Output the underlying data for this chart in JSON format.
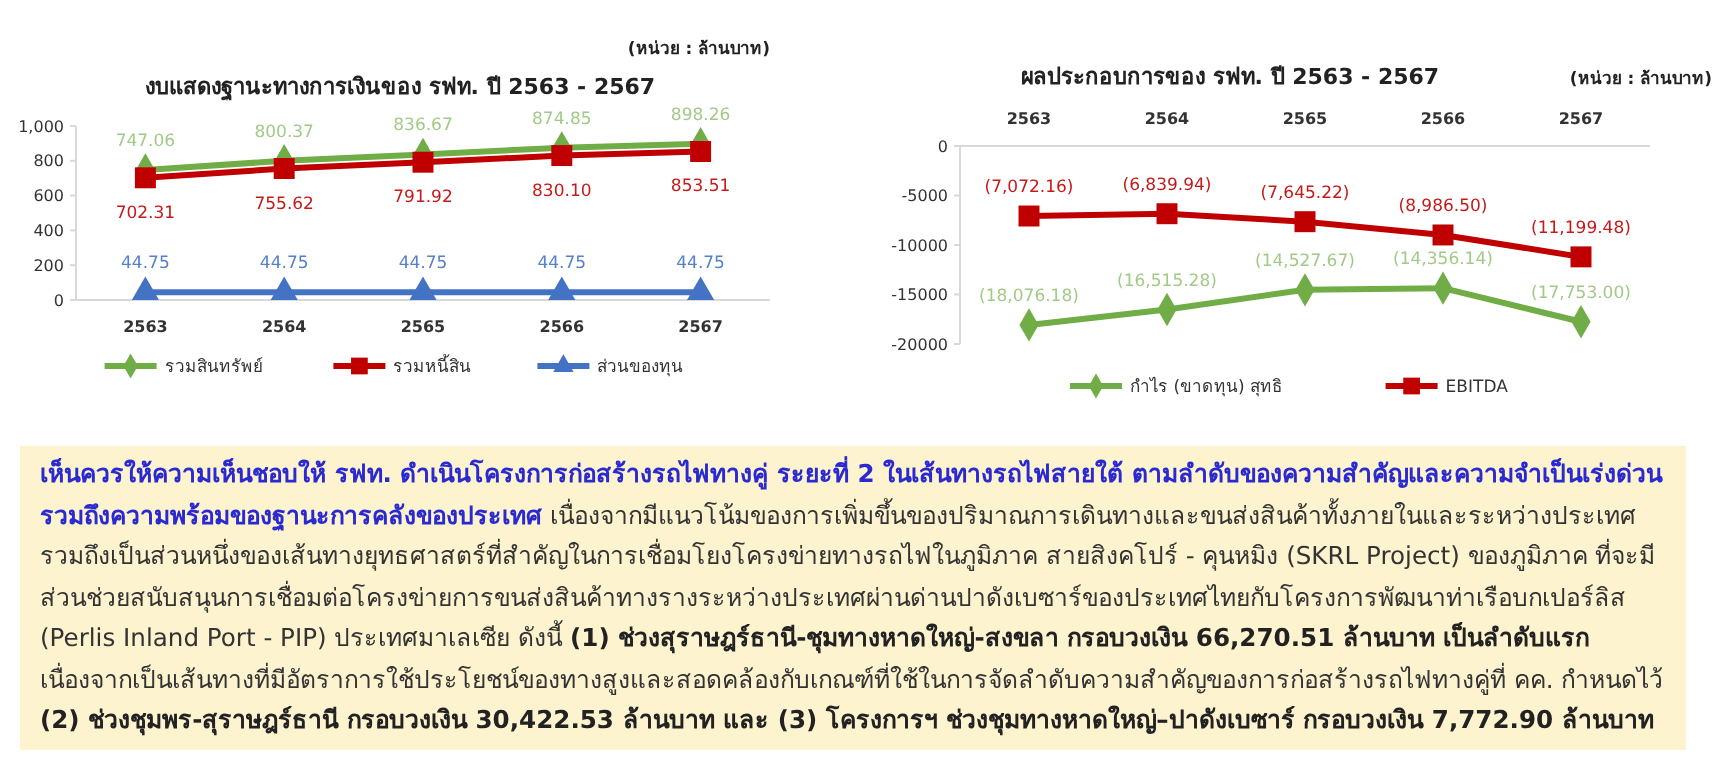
{
  "chart_data": [
    {
      "type": "line",
      "title": "งบแสดงฐานะทางการเงินของ รฟท. ปี 2563 - 2567",
      "annotations": [
        "(หน่วย : ล้านบาท)"
      ],
      "categories": [
        "2563",
        "2564",
        "2565",
        "2566",
        "2567"
      ],
      "ylim": [
        0,
        1000
      ],
      "yticks": [
        0,
        200,
        400,
        600,
        800,
        {
          "value": 1000,
          "label": "1,000"
        }
      ],
      "legend": "bottom",
      "series": [
        {
          "name": "รวมสินทรัพย์",
          "color": "#70ad47",
          "marker": "diamond",
          "values": [
            747.06,
            800.37,
            836.67,
            874.85,
            898.26
          ],
          "value_labels": [
            "747.06",
            "800.37",
            "836.67",
            "874.85",
            "898.26"
          ]
        },
        {
          "name": "รวมหนี้สิน",
          "color": "#c00000",
          "marker": "square",
          "values": [
            702.31,
            755.62,
            791.92,
            830.1,
            853.51
          ],
          "value_labels": [
            "702.31",
            "755.62",
            "791.92",
            "830.10",
            "853.51"
          ]
        },
        {
          "name": "ส่วนของทุน",
          "color": "#4472c4",
          "marker": "triangle",
          "values": [
            44.75,
            44.75,
            44.75,
            44.75,
            44.75
          ],
          "value_labels": [
            "44.75",
            "44.75",
            "44.75",
            "44.75",
            "44.75"
          ]
        }
      ]
    },
    {
      "type": "line",
      "title": "ผลประกอบการของ รฟท. ปี 2563 - 2567",
      "annotations": [
        "(หน่วย : ล้านบาท)"
      ],
      "categories": [
        "2563",
        "2564",
        "2565",
        "2566",
        "2567"
      ],
      "ylim": [
        -20000,
        0
      ],
      "yticks": [
        -20000,
        -15000,
        -10000,
        -5000,
        0
      ],
      "legend": "bottom",
      "series": [
        {
          "name": "กำไร (ขาดทุน) สุทธิ",
          "color": "#70ad47",
          "marker": "diamond",
          "values": [
            -18076.18,
            -16515.28,
            -14527.67,
            -14356.14,
            -17753.0
          ],
          "value_labels": [
            "(18,076.18)",
            "(16,515.28)",
            "(14,527.67)",
            "(14,356.14)",
            "(17,753.00)"
          ]
        },
        {
          "name": "EBITDA",
          "color": "#c00000",
          "marker": "square",
          "values": [
            -7072.16,
            -6839.94,
            -7645.22,
            -8986.5,
            -11199.48
          ],
          "value_labels": [
            "(7,072.16)",
            "(6,839.94)",
            "(7,645.22)",
            "(8,986.50)",
            "(11,199.48)"
          ]
        }
      ]
    },
    {
      "type": "other",
      "annotations": [
        "เห็นควรให้ความเห็นชอบให้ รฟท. ดำเนินโครงการก่อสร้างรถไฟทางคู่ ระยะที่ 2 ในเส้นทางรถไฟสายใต้ ตามลำดับของความสำคัญและความจำเป็นเร่งด่วน รวมถึงความพร้อมของฐานะการคลังของประเทศ",
        " เนื่องจากมีแนวโน้มของการเพิ่มขึ้นของปริมาณการเดินทางและขนส่งสินค้าทั้งภายในและระหว่างประเทศ รวมถึงเป็นส่วนหนึ่งของเส้นทางยุทธศาสตร์ที่สำคัญในการเชื่อมโยงโครงข่ายทางรถไฟในภูมิภาค สายสิงคโปร์ - คุนหมิง (SKRL Project) ของภูมิภาค ที่จะมีส่วนช่วยสนับสนุนการเชื่อมต่อโครงข่ายการขนส่งสินค้าทางรางระหว่างประเทศผ่านด่านปาดังเบซาร์ของประเทศไทยกับโครงการพัฒนาท่าเรือบกเปอร์ลิส (Perlis Inland Port - PIP) ประเทศมาเลเซีย ดังนี้ ",
        "(1) ช่วงสุราษฎร์ธานี-ชุมทางหาดใหญ่-สงขลา กรอบวงเงิน 66,270.51 ล้านบาท เป็นลำดับแรก",
        " เนื่องจากเป็นเส้นทางที่มีอัตราการใช้ประโยชน์ของทางสูงและสอดคล้องกับเกณฑ์ที่ใช้ในการจัดลำดับความสำคัญของการก่อสร้างรถไฟทางคู่ที่ คค. กำหนดไว้ ",
        "(2) ช่วงชุมพร-สุราษฎร์ธานี กรอบวงเงิน 30,422.53 ล้านบาท และ (3) โครงการฯ ช่วงชุมทางหาดใหญ่–ปาดังเบซาร์ กรอบวงเงิน 7,772.90 ล้านบาท"
      ]
    }
  ]
}
